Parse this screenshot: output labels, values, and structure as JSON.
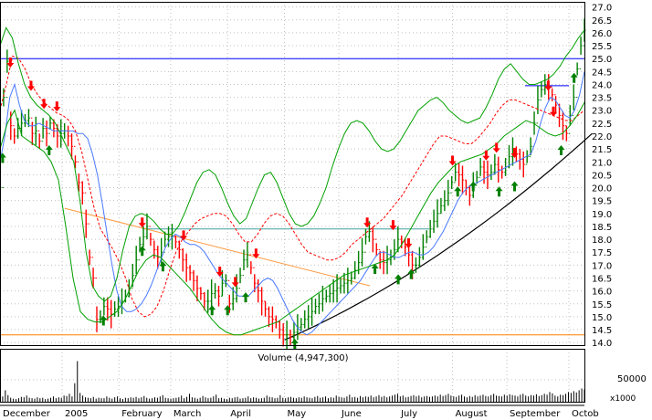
{
  "colors": {
    "background": "#ffffff",
    "frame": "#000000",
    "grid": "#c0c0c0",
    "price_up": "#008000",
    "price_down": "#ff0000",
    "ma_short": "#4a79ff",
    "ma_long": "#ff0000",
    "bollinger": "#00a000",
    "resistance": "#0000ff",
    "support": "#ff8000",
    "downtrend": "#ff9a40",
    "neckline": "#40a0a0",
    "uptrend": "#000000",
    "volume": "#000000",
    "buy_arrow": "#008000",
    "sell_arrow": "#ff0000"
  },
  "chart_data": [
    {
      "type": "line",
      "panel": "price",
      "y_ticks": [
        "27.0",
        "26.5",
        "26.0",
        "25.5",
        "25.0",
        "24.5",
        "24.0",
        "23.5",
        "23.0",
        "22.5",
        "22.0",
        "21.5",
        "21.0",
        "20.5",
        "20.0",
        "19.5",
        "19.0",
        "18.5",
        "18.0",
        "17.5",
        "17.0",
        "16.5",
        "16.0",
        "15.5",
        "15.0",
        "14.5",
        "14.0"
      ],
      "ylim": [
        13.9,
        27.2
      ],
      "xlim": [
        0,
        226
      ],
      "x_month_labels": [
        {
          "label": "December",
          "x": 0
        },
        {
          "label": "2005",
          "x": 24
        },
        {
          "label": "February",
          "x": 46
        },
        {
          "label": "March",
          "x": 66
        },
        {
          "label": "April",
          "x": 88
        },
        {
          "label": "May",
          "x": 110
        },
        {
          "label": "June",
          "x": 131
        },
        {
          "label": "July",
          "x": 154
        },
        {
          "label": "August",
          "x": 175
        },
        {
          "label": "September",
          "x": 196
        },
        {
          "label": "Octob",
          "x": 220
        }
      ],
      "series": [
        {
          "role": "close",
          "values": [
            20.0,
            23.5,
            24.9,
            22.4,
            22.0,
            22.3,
            22.5,
            22.6,
            22.7,
            22.1,
            22.2,
            21.8,
            22.3,
            22.1,
            22.5,
            22.3,
            22.0,
            22.1,
            22.2,
            22.0,
            21.6,
            21.0,
            20.2,
            19.8,
            18.6,
            17.3,
            16.5,
            14.9,
            15.0,
            15.4,
            15.3,
            15.1,
            15.3,
            15.4,
            15.6,
            15.8,
            16.1,
            16.6,
            17.2,
            17.8,
            18.1,
            18.5,
            18.0,
            17.6,
            17.3,
            17.5,
            18.0,
            18.1,
            18.1,
            17.9,
            17.6,
            17.2,
            16.9,
            16.7,
            16.4,
            16.1,
            15.9,
            15.6,
            15.6,
            15.9,
            16.0,
            15.8,
            16.3,
            16.4,
            15.5,
            15.7,
            16.1,
            16.6,
            17.2,
            17.4,
            16.9,
            16.3,
            16.0,
            15.6,
            15.3,
            15.0,
            14.9,
            14.8,
            14.5,
            14.3,
            14.3,
            14.2,
            14.4,
            14.6,
            14.7,
            14.9,
            15.0,
            15.2,
            15.4,
            15.5,
            15.7,
            15.8,
            15.9,
            16.0,
            16.1,
            16.2,
            16.3,
            16.4,
            16.5,
            16.8,
            17.1,
            17.5,
            18.1,
            18.3,
            18.0,
            17.6,
            17.2,
            17.1,
            17.2,
            17.3,
            17.6,
            18.0,
            17.9,
            17.7,
            17.4,
            17.0,
            17.0,
            17.3,
            17.7,
            18.1,
            18.4,
            18.7,
            19.0,
            19.3,
            19.5,
            19.8,
            20.2,
            20.6,
            20.5,
            20.3,
            20.0,
            19.7,
            20.1,
            20.4,
            20.8,
            20.6,
            20.5,
            20.6,
            20.9,
            20.7,
            20.6,
            20.8,
            21.2,
            21.4,
            21.3,
            21.1,
            20.9,
            21.2,
            21.6,
            22.5,
            23.4,
            23.8,
            24.0,
            23.9,
            23.6,
            23.2,
            22.8,
            22.4,
            22.1,
            22.8,
            23.5,
            24.6,
            25.5,
            26.1
          ],
          "x_start": 0,
          "x_end": 226
        },
        {
          "role": "ma_short",
          "values": [
            21.0,
            22.0,
            23.5,
            24.0,
            23.2,
            22.6,
            22.4,
            22.4,
            22.5,
            22.4,
            22.3,
            22.2,
            22.2,
            22.2,
            22.2,
            22.2,
            22.1,
            22.1,
            21.9,
            21.3,
            20.5,
            19.4,
            18.2,
            17.0,
            16.0,
            15.4,
            15.2,
            15.2,
            15.3,
            15.5,
            15.8,
            16.2,
            16.7,
            17.2,
            17.7,
            18.0,
            18.2,
            18.1,
            17.9,
            17.8,
            17.8,
            17.7,
            17.5,
            17.2,
            16.9,
            16.6,
            16.4,
            16.2,
            16.0,
            15.8,
            15.8,
            15.8,
            16.0,
            16.2,
            16.4,
            16.5,
            16.4,
            16.1,
            15.7,
            15.3,
            14.9,
            14.6,
            14.4,
            14.3,
            14.4,
            14.6,
            14.8,
            15.0,
            15.2,
            15.4,
            15.6,
            15.8,
            16.0,
            16.2,
            16.4,
            16.7,
            17.0,
            17.3,
            17.5,
            17.5,
            17.4,
            17.3,
            17.3,
            17.4,
            17.5,
            17.5,
            17.4,
            17.4,
            17.5,
            17.7,
            18.0,
            18.3,
            18.7,
            19.1,
            19.5,
            19.8,
            20.0,
            20.1,
            20.2,
            20.3,
            20.4,
            20.5,
            20.6,
            20.7,
            20.8,
            20.9,
            21.0,
            21.1,
            21.2,
            21.3,
            21.8,
            22.5,
            23.1,
            23.5,
            23.4,
            23.1,
            22.8,
            22.7,
            23.0,
            23.6,
            24.5
          ],
          "x_start": 0,
          "x_end": 226
        },
        {
          "role": "ma_long",
          "values": [
            23.0,
            24.0,
            25.1,
            25.0,
            24.6,
            24.0,
            23.6,
            23.3,
            23.1,
            22.9,
            22.8,
            22.6,
            22.2,
            21.4,
            20.3,
            19.2,
            18.4,
            18.0,
            17.6,
            17.1,
            16.5,
            15.7,
            15.2,
            15.0,
            15.1,
            15.4,
            16.0,
            16.8,
            17.5,
            18.0,
            18.3,
            18.6,
            18.8,
            18.9,
            19.0,
            19.0,
            18.9,
            18.6,
            18.2,
            17.9,
            17.9,
            18.2,
            18.6,
            18.9,
            19.0,
            18.9,
            18.6,
            18.2,
            17.8,
            17.5,
            17.4,
            17.3,
            17.2,
            17.2,
            17.3,
            17.5,
            17.8,
            18.0,
            18.2,
            18.4,
            18.6,
            18.8,
            19.1,
            19.4,
            19.7,
            20.1,
            20.5,
            20.9,
            21.3,
            21.7,
            22.0,
            22.0,
            21.9,
            21.8,
            21.7,
            21.7,
            21.9,
            22.2,
            22.5,
            22.9,
            23.2,
            23.4,
            23.4,
            23.3,
            23.2,
            23.1,
            23.0,
            22.9,
            22.8,
            22.7,
            22.6,
            22.6,
            22.8,
            23.0
          ],
          "x_start": 0,
          "x_end": 226
        },
        {
          "role": "bollinger_upper",
          "values": [
            25.5,
            26.2,
            25.8,
            24.8,
            24.0,
            23.5,
            23.2,
            23.0,
            22.8,
            22.5,
            22.0,
            21.5,
            21.0,
            19.5,
            17.5,
            16.2,
            15.8,
            15.6,
            15.8,
            16.5,
            17.6,
            18.5,
            18.9,
            19.0,
            18.9,
            18.7,
            18.4,
            18.2,
            18.2,
            18.5,
            19.0,
            19.6,
            20.2,
            20.6,
            20.7,
            20.5,
            20.0,
            19.4,
            18.9,
            18.6,
            18.8,
            19.4,
            20.0,
            20.5,
            20.6,
            20.2,
            19.6,
            19.0,
            18.6,
            18.5,
            18.6,
            18.9,
            19.4,
            20.0,
            20.8,
            21.5,
            22.1,
            22.5,
            22.6,
            22.5,
            22.2,
            21.8,
            21.5,
            21.4,
            21.5,
            21.8,
            22.2,
            22.6,
            23.0,
            23.2,
            23.4,
            23.5,
            23.3,
            23.0,
            22.8,
            22.6,
            22.5,
            22.6,
            22.7,
            23.1,
            23.6,
            24.2,
            24.6,
            24.8,
            24.5,
            24.2,
            24.0,
            24.0,
            24.1,
            24.2,
            24.4,
            24.7,
            25.1,
            25.4,
            25.8,
            26.1
          ],
          "x_start": 0,
          "x_end": 226
        },
        {
          "role": "bollinger_lower",
          "values": [
            21.5,
            22.5,
            23.0,
            22.0,
            21.8,
            21.6,
            21.4,
            21.0,
            20.3,
            18.5,
            16.5,
            15.2,
            14.9,
            14.8,
            14.8,
            15.0,
            15.2,
            15.6,
            16.2,
            16.8,
            17.2,
            17.4,
            17.3,
            17.0,
            16.7,
            16.4,
            16.1,
            15.7,
            15.3,
            14.9,
            14.6,
            14.4,
            14.3,
            14.3,
            14.4,
            14.5,
            14.6,
            14.7,
            14.8,
            15.0,
            15.2,
            15.4,
            15.6,
            15.8,
            16.0,
            16.2,
            16.4,
            16.6,
            16.7,
            16.8,
            16.9,
            17.0,
            17.1,
            17.2,
            17.4,
            17.8,
            18.3,
            18.8,
            19.3,
            19.8,
            20.2,
            20.5,
            20.8,
            21.0,
            21.1,
            21.2,
            21.3,
            21.5,
            21.7,
            22.0,
            22.2,
            22.4,
            22.6,
            22.5,
            22.3,
            22.1,
            22.0,
            22.1,
            22.4,
            22.8,
            23.3
          ],
          "x_start": 0,
          "x_end": 226
        }
      ],
      "annotations": {
        "resistance_level": 25.0,
        "support_level": 14.3,
        "neckline_level": 18.4,
        "neckline_x": [
          55,
          166
        ],
        "short_resistance": {
          "level": 23.95,
          "x": [
            203,
            220
          ]
        },
        "downtrend": {
          "x": [
            25,
            143
          ],
          "y": [
            19.2,
            16.2
          ]
        },
        "uptrend": {
          "x": [
            110,
            229
          ],
          "y": [
            14.1,
            22.1
          ]
        },
        "sell_arrows": [
          {
            "x": 4,
            "y": 24.9
          },
          {
            "x": 12,
            "y": 24.0
          },
          {
            "x": 17,
            "y": 23.3
          },
          {
            "x": 22,
            "y": 23.2
          },
          {
            "x": 55,
            "y": 18.7
          },
          {
            "x": 71,
            "y": 18.2
          },
          {
            "x": 85,
            "y": 16.8
          },
          {
            "x": 91,
            "y": 16.4
          },
          {
            "x": 99,
            "y": 17.5
          },
          {
            "x": 142,
            "y": 18.7
          },
          {
            "x": 152,
            "y": 18.6
          },
          {
            "x": 158,
            "y": 17.9
          },
          {
            "x": 175,
            "y": 21.1
          },
          {
            "x": 188,
            "y": 21.3
          },
          {
            "x": 192,
            "y": 21.6
          },
          {
            "x": 199,
            "y": 21.4
          },
          {
            "x": 212,
            "y": 24.0
          },
          {
            "x": 214,
            "y": 23.0
          }
        ],
        "buy_arrows": [
          {
            "x": 1,
            "y": 21.1
          },
          {
            "x": 19,
            "y": 21.4
          },
          {
            "x": 40,
            "y": 14.8
          },
          {
            "x": 55,
            "y": 17.5
          },
          {
            "x": 63,
            "y": 16.9
          },
          {
            "x": 82,
            "y": 15.2
          },
          {
            "x": 88,
            "y": 15.2
          },
          {
            "x": 95,
            "y": 15.7
          },
          {
            "x": 114,
            "y": 13.9
          },
          {
            "x": 145,
            "y": 16.8
          },
          {
            "x": 154,
            "y": 16.4
          },
          {
            "x": 159,
            "y": 16.6
          },
          {
            "x": 177,
            "y": 19.8
          },
          {
            "x": 183,
            "y": 20.0
          },
          {
            "x": 193,
            "y": 19.8
          },
          {
            "x": 199,
            "y": 20.0
          },
          {
            "x": 217,
            "y": 21.4
          },
          {
            "x": 222,
            "y": 24.2
          }
        ]
      }
    },
    {
      "type": "bar",
      "panel": "volume",
      "title": "Volume (4,947,300)",
      "unit_label": "x1000",
      "y_ticks": [
        "50000"
      ],
      "ylim": [
        0,
        120000
      ],
      "xlim": [
        0,
        226
      ],
      "values": [
        18000,
        12000,
        26000,
        15000,
        9000,
        7000,
        6000,
        8000,
        11000,
        10000,
        14000,
        9000,
        8000,
        7000,
        10000,
        8000,
        9000,
        6000,
        7000,
        9000,
        12000,
        8000,
        10000,
        9000,
        14000,
        13000,
        18000,
        12000,
        42000,
        92000,
        20000,
        14000,
        10000,
        9000,
        8000,
        11000,
        7000,
        9000,
        8000,
        8000,
        12000,
        9000,
        7000,
        10000,
        12000,
        8000,
        6000,
        9000,
        8000,
        10000,
        9000,
        11000,
        8000,
        10000,
        13000,
        9000,
        7000,
        8000,
        10000,
        9000,
        12000,
        15000,
        9000,
        8000,
        7000,
        8000,
        9000,
        10000,
        14000,
        8000,
        11000,
        18000,
        10000,
        9000,
        7000,
        9000,
        13000,
        10000,
        8000,
        9000,
        12000,
        16000,
        8000,
        9000,
        7000,
        6000,
        9000,
        8000,
        10000,
        11000,
        7000,
        8000,
        9000,
        12000,
        8000,
        10000,
        9000,
        7000,
        8000,
        9000,
        14000,
        11000,
        10000,
        8000,
        9000,
        15000,
        9000,
        8000,
        10000,
        11000,
        9000,
        8000,
        10000,
        9000,
        12000,
        10000,
        9000,
        8000,
        11000,
        13000,
        9000,
        10000,
        12000,
        8000,
        10000,
        9000,
        14000,
        11000,
        10000,
        9000,
        12000,
        16000,
        10000,
        11000,
        9000,
        13000,
        10000,
        12000,
        11000,
        14000,
        10000,
        12000,
        15000,
        11000,
        13000,
        10000,
        12000,
        14000,
        16000,
        18000,
        12000,
        14000,
        10000,
        11000,
        13000,
        15000,
        12000,
        14000,
        10000,
        12000,
        13000,
        11000,
        12000,
        14000,
        12000,
        16000,
        13000,
        15000,
        18000,
        14000,
        12000,
        11000,
        14000,
        16000,
        12000,
        10000,
        13000,
        11000,
        15000,
        12000,
        14000,
        16000,
        13000,
        12000,
        15000,
        18000,
        14000,
        13000,
        12000,
        16000,
        14000,
        17000,
        15000,
        14000,
        12000,
        16000,
        18000,
        14000,
        12000,
        15000,
        14000,
        17000,
        13000,
        15000,
        18000,
        16000,
        22000,
        19000,
        14000,
        12000,
        16000,
        15000,
        18000,
        22000,
        20000,
        24000,
        21000,
        26000,
        30000,
        28000
      ]
    }
  ],
  "labels": {
    "volume_title": "Volume (4,947,300)",
    "volume_unit": "x1000",
    "volume_tick": "50000"
  }
}
